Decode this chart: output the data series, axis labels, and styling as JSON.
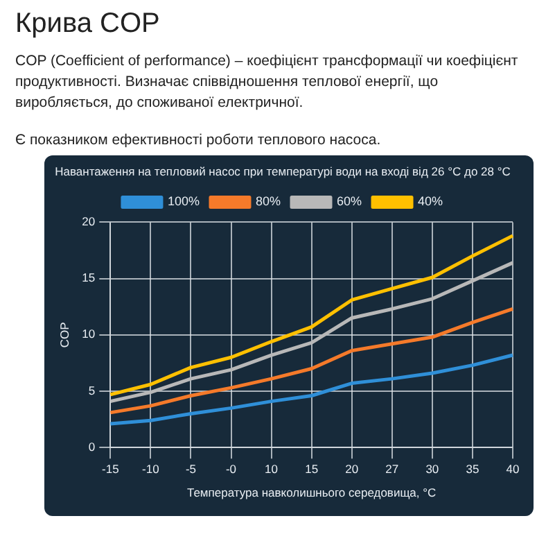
{
  "chart_data": {
    "type": "line",
    "title": "Крива COP",
    "annotations": [
      "COP (Coefficient of performance) – коефіцієнт трансформації чи коефіцієнт продуктивності. Визначає співвідношення теплової енергії, що виробляється, до споживаної електричної.",
      "Є показником ефективності роботи теплового насоса."
    ],
    "subtitle": "Навантаження на тепловий насос при температурі води на вході від 26 °C до 28 °C",
    "xlabel": "Температура навколишнього середовища, °C",
    "ylabel": "COP",
    "categories": [
      "-15",
      "-10",
      "-5",
      "-0",
      "10",
      "15",
      "20",
      "27",
      "30",
      "35",
      "40"
    ],
    "series": [
      {
        "name": "100%",
        "color": "#2f8fd8",
        "values": [
          2.1,
          2.4,
          3.0,
          3.5,
          4.1,
          4.6,
          5.7,
          6.1,
          6.6,
          7.3,
          8.2
        ]
      },
      {
        "name": "80%",
        "color": "#f57a2a",
        "values": [
          3.1,
          3.7,
          4.6,
          5.3,
          6.1,
          7.0,
          8.6,
          9.2,
          9.8,
          11.1,
          12.3
        ]
      },
      {
        "name": "60%",
        "color": "#b8b8b8",
        "values": [
          4.1,
          4.9,
          6.1,
          6.9,
          8.2,
          9.3,
          11.5,
          12.3,
          13.2,
          14.8,
          16.4
        ]
      },
      {
        "name": "40%",
        "color": "#ffc000",
        "values": [
          4.7,
          5.6,
          7.1,
          8.0,
          9.4,
          10.7,
          13.1,
          14.1,
          15.1,
          17.0,
          18.8
        ]
      }
    ],
    "ylim": [
      0,
      20
    ],
    "yticks": [
      0,
      5,
      10,
      15,
      20
    ],
    "grid": true,
    "legend": "top",
    "marker": "none",
    "line_style": "solid"
  }
}
